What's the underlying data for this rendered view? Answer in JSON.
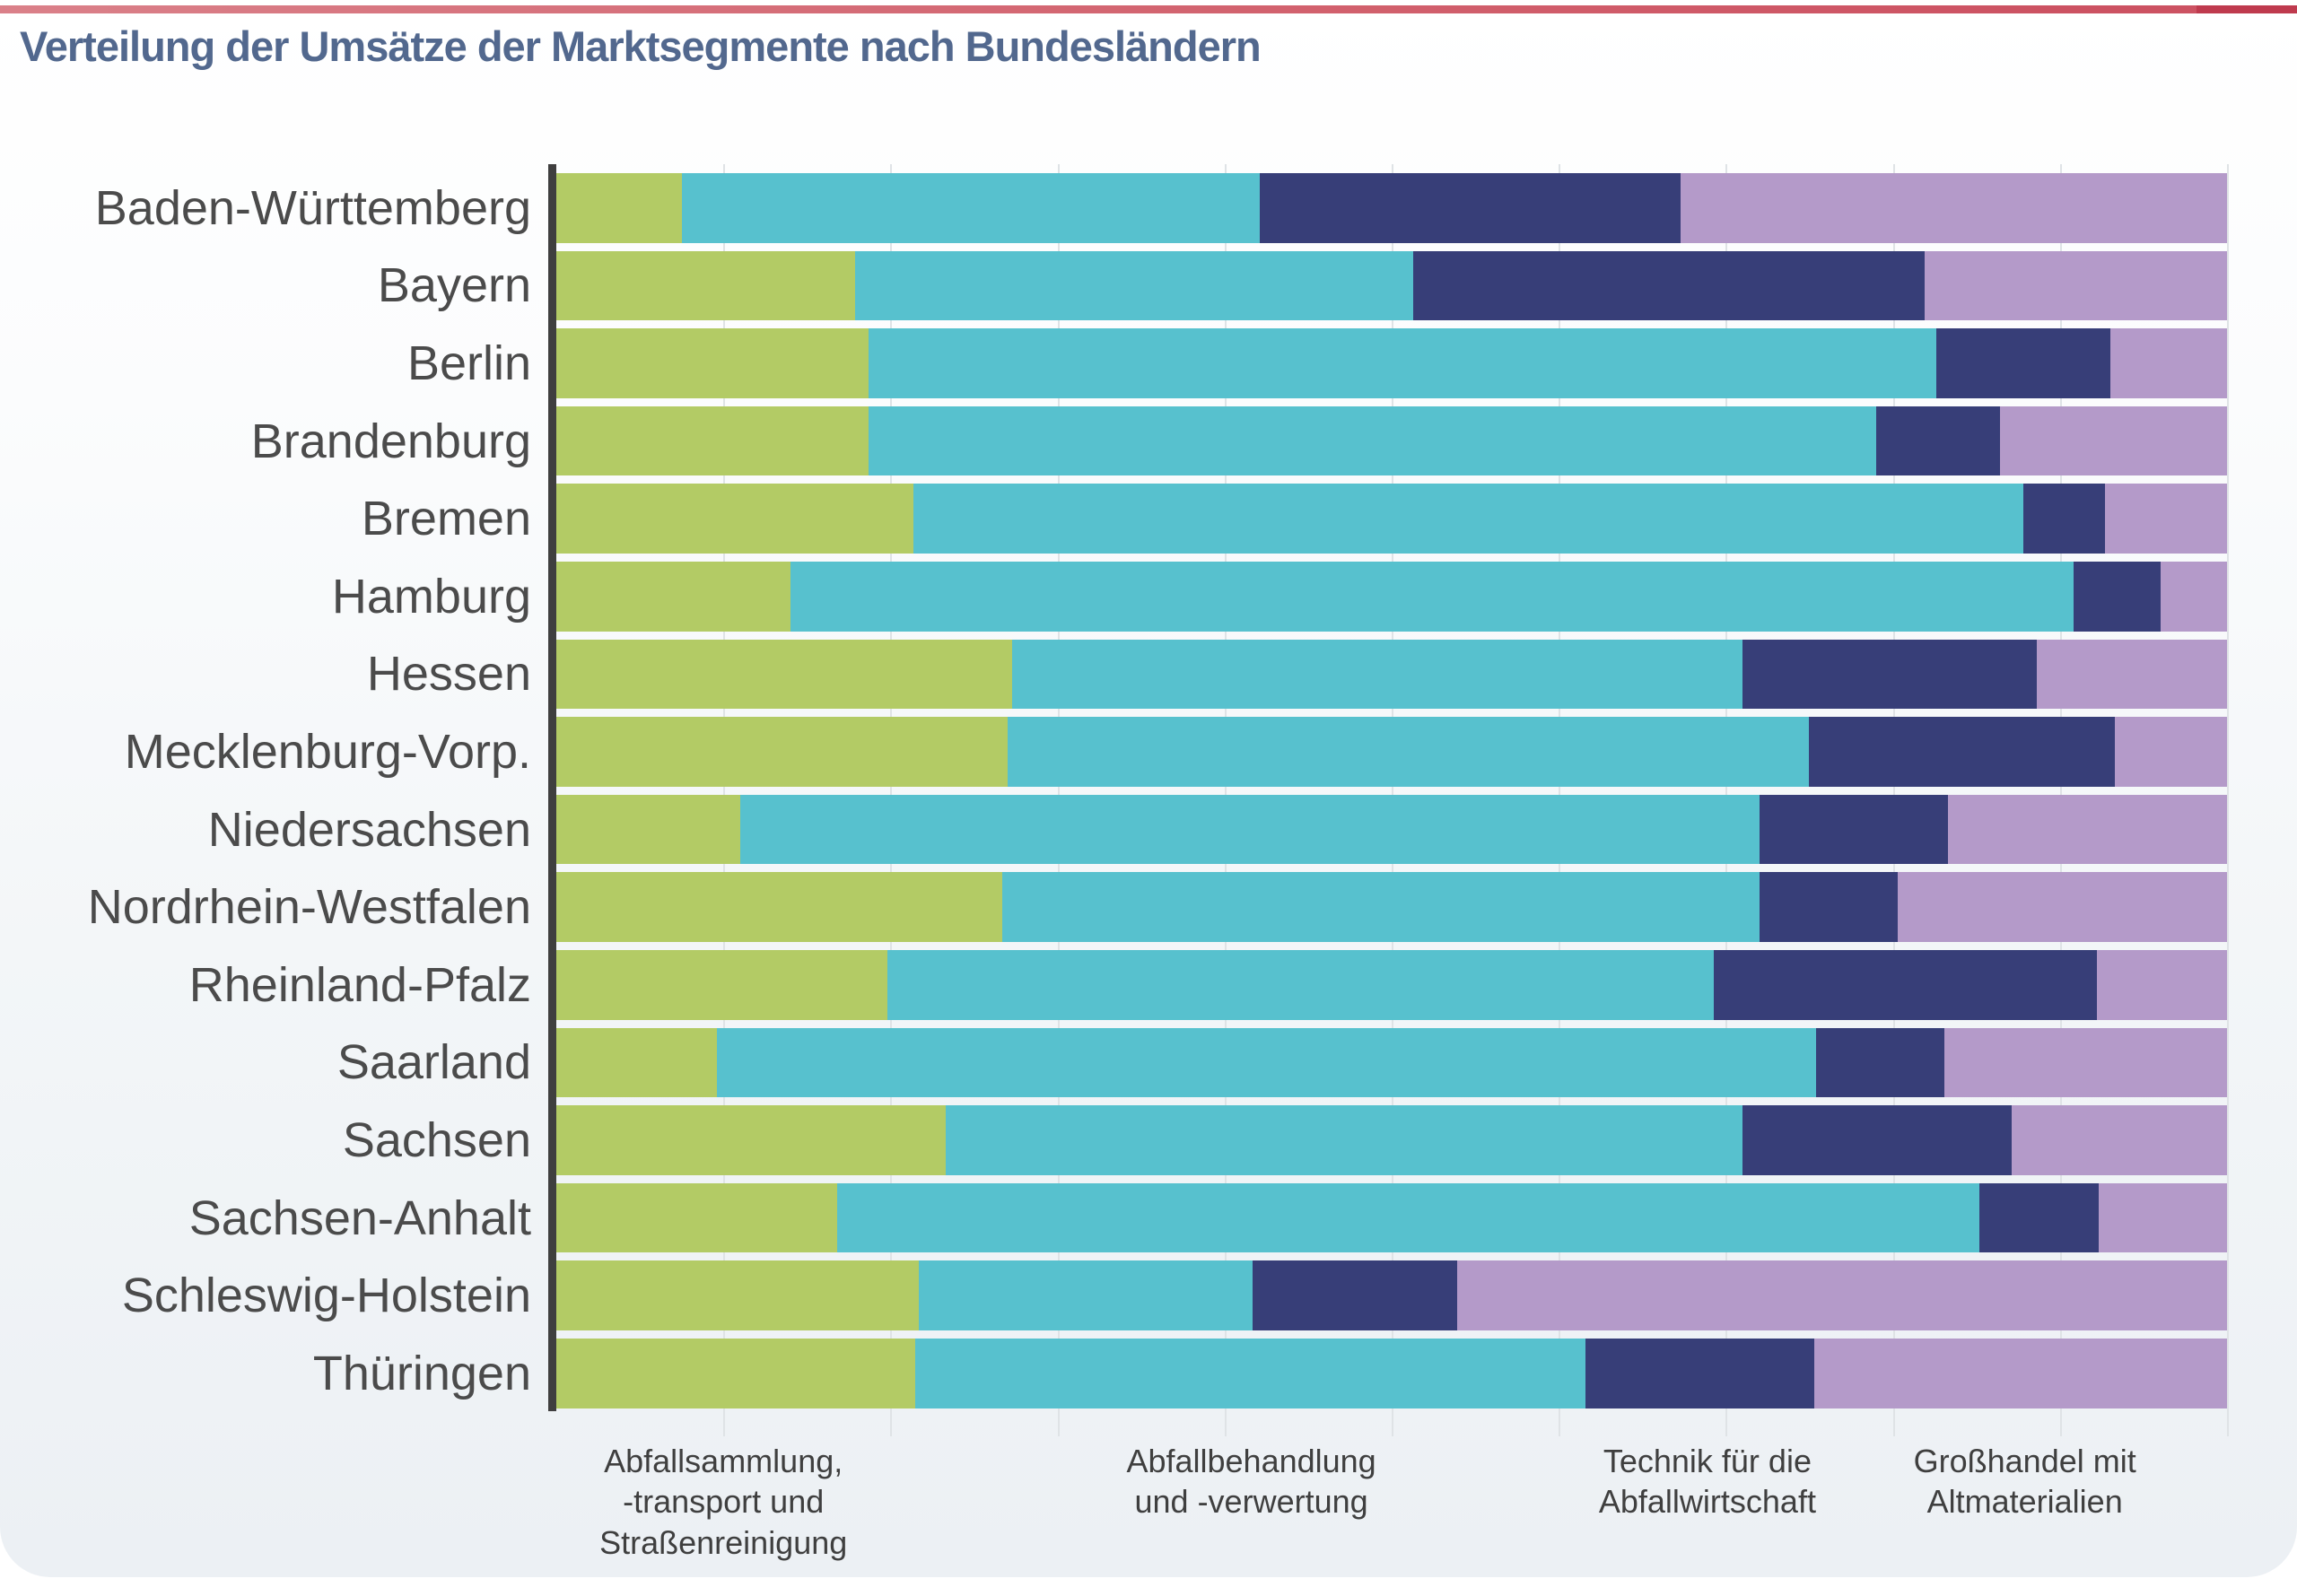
{
  "header": {
    "title": "Verteilung der Umsätze der Marktsegmente nach Bundesländern"
  },
  "accent": {
    "main_color": "#d2626e",
    "end_color": "#bf3a4e"
  },
  "style_colors": {
    "axis": "#3f3f3f",
    "gridline": "#dfe3e6",
    "title": "#52688e",
    "state_label": "#4b4b4b"
  },
  "chart_data": {
    "type": "bar",
    "orientation": "horizontal",
    "stacked": true,
    "title": "Verteilung der Umsätze der Marktsegmente nach Bundesländern",
    "xlabel": "",
    "ylabel": "",
    "unit": "percent share of revenue (estimated from bar widths)",
    "xlim": [
      0,
      100
    ],
    "grid": {
      "vertical": true,
      "interval_pct": 10
    },
    "legend_position": "below-as-axis-labels",
    "categories": [
      "Baden-Württemberg",
      "Bayern",
      "Berlin",
      "Brandenburg",
      "Bremen",
      "Hamburg",
      "Hessen",
      "Mecklenburg-Vorp.",
      "Niedersachsen",
      "Nordrhein-Westfalen",
      "Rheinland-Pfalz",
      "Saarland",
      "Sachsen",
      "Sachsen-Anhalt",
      "Schleswig-Holstein",
      "Thüringen"
    ],
    "series": [
      {
        "name": "Abfallsammlung, -transport und Straßenreinigung",
        "color": "#b3cb65",
        "values": [
          7.5,
          17.9,
          18.7,
          18.7,
          21.4,
          14.0,
          27.3,
          27.0,
          11.0,
          26.7,
          19.8,
          9.6,
          23.3,
          16.8,
          21.7,
          21.5
        ]
      },
      {
        "name": "Abfallbehandlung und -verwertung",
        "color": "#57c1ce",
        "values": [
          34.6,
          33.4,
          63.9,
          60.3,
          66.4,
          76.8,
          43.7,
          48.0,
          61.0,
          45.3,
          49.5,
          65.8,
          47.7,
          68.4,
          20.0,
          40.1
        ]
      },
      {
        "name": "Technik für die Abfallwirtschaft",
        "color": "#373e78",
        "values": [
          25.2,
          30.6,
          10.4,
          7.4,
          4.9,
          5.2,
          17.6,
          18.3,
          11.3,
          8.3,
          22.9,
          7.7,
          16.1,
          7.1,
          12.2,
          13.7
        ]
      },
      {
        "name": "Großhandel mit Altmaterialien",
        "color": "#b49ac9",
        "values": [
          32.7,
          18.1,
          7.0,
          13.6,
          7.3,
          4.0,
          11.4,
          6.7,
          16.7,
          19.7,
          7.8,
          16.9,
          12.9,
          7.7,
          46.1,
          24.7
        ]
      }
    ],
    "x_axis_labels": [
      {
        "text": "Abfallsammlung,\n-transport und\nStraßenreinigung",
        "position_pct": 10.0
      },
      {
        "text": "Abfallbehandlung\nund -verwertung",
        "position_pct": 41.6
      },
      {
        "text": "Technik für die\nAbfallwirtschaft",
        "position_pct": 68.9
      },
      {
        "text": "Großhandel mit\nAltmaterialien",
        "position_pct": 87.9
      }
    ]
  }
}
